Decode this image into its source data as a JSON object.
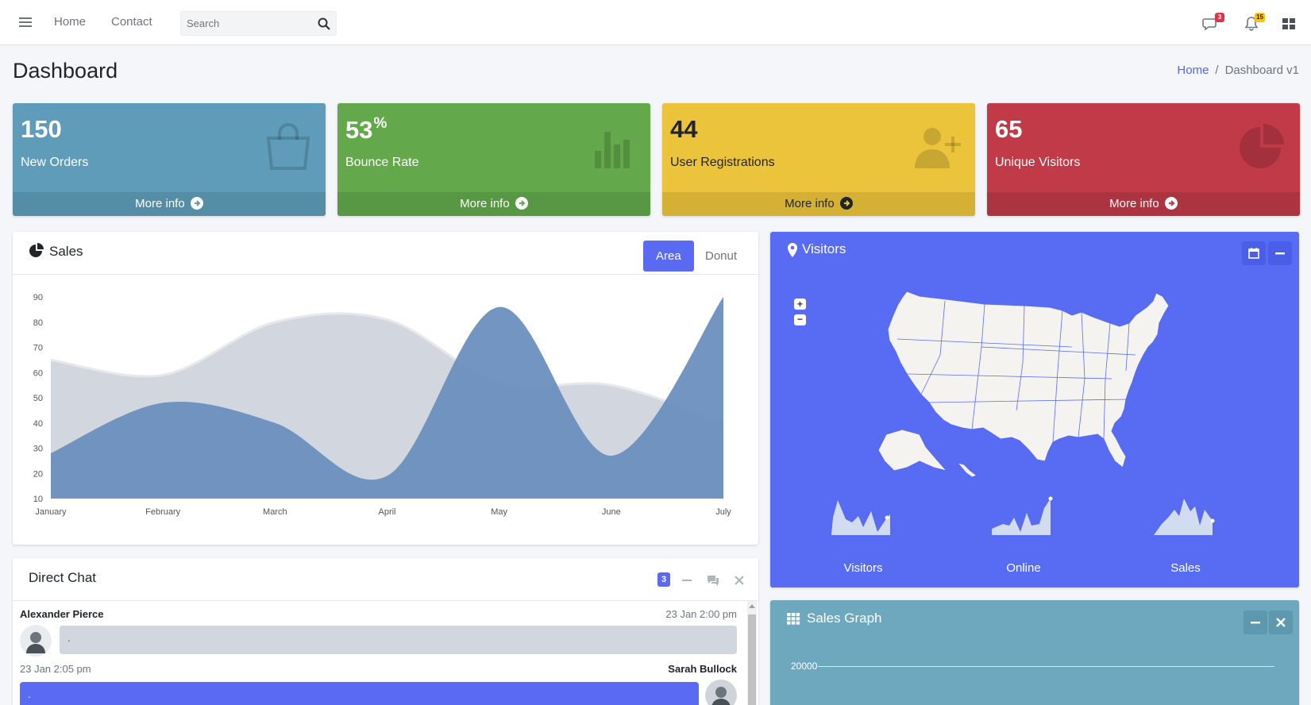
{
  "topnav": {
    "links": [
      "Home",
      "Contact"
    ],
    "search_placeholder": "Search",
    "messages_badge": "3",
    "notifications_badge": "15"
  },
  "page": {
    "title": "Dashboard",
    "breadcrumb": [
      "Home",
      "Dashboard v1"
    ]
  },
  "info_boxes": [
    {
      "value": "150",
      "suffix": "",
      "label": "New Orders",
      "footer": "More info",
      "color": "#5f9cb9",
      "icon": "shopping-bag-icon"
    },
    {
      "value": "53",
      "suffix": "%",
      "label": "Bounce Rate",
      "footer": "More info",
      "color": "#63a94b",
      "icon": "bar-chart-icon"
    },
    {
      "value": "44",
      "suffix": "",
      "label": "User Registrations",
      "footer": "More info",
      "color": "#ecc43b",
      "icon": "user-plus-icon"
    },
    {
      "value": "65",
      "suffix": "",
      "label": "Unique Visitors",
      "footer": "More info",
      "color": "#c03a48",
      "icon": "pie-chart-icon"
    }
  ],
  "sales": {
    "title": "Sales",
    "tabs": [
      "Area",
      "Donut"
    ],
    "active_tab": "Area"
  },
  "chart_data": {
    "type": "area",
    "categories": [
      "January",
      "February",
      "March",
      "April",
      "May",
      "June",
      "July"
    ],
    "ylim": [
      10,
      90
    ],
    "yticks": [
      10,
      20,
      30,
      40,
      50,
      60,
      70,
      80,
      90
    ],
    "series": [
      {
        "values": [
          65,
          59,
          80,
          81,
          56,
          55,
          40
        ],
        "color": "#d2d6de"
      },
      {
        "values": [
          28,
          48,
          40,
          19,
          86,
          27,
          90
        ],
        "color": "#6a8fbe"
      }
    ]
  },
  "visitors": {
    "title": "Visitors",
    "sparklines": [
      "Visitors",
      "Online",
      "Sales"
    ]
  },
  "sales_graph": {
    "title": "Sales Graph",
    "y_tick": "20000"
  },
  "chat": {
    "title": "Direct Chat",
    "badge": "3",
    "messages": [
      {
        "name": "Alexander Pierce",
        "time": "23 Jan 2:00 pm",
        "text": "."
      },
      {
        "name": "Sarah Bullock",
        "time": "23 Jan 2:05 pm",
        "text": "."
      }
    ]
  }
}
